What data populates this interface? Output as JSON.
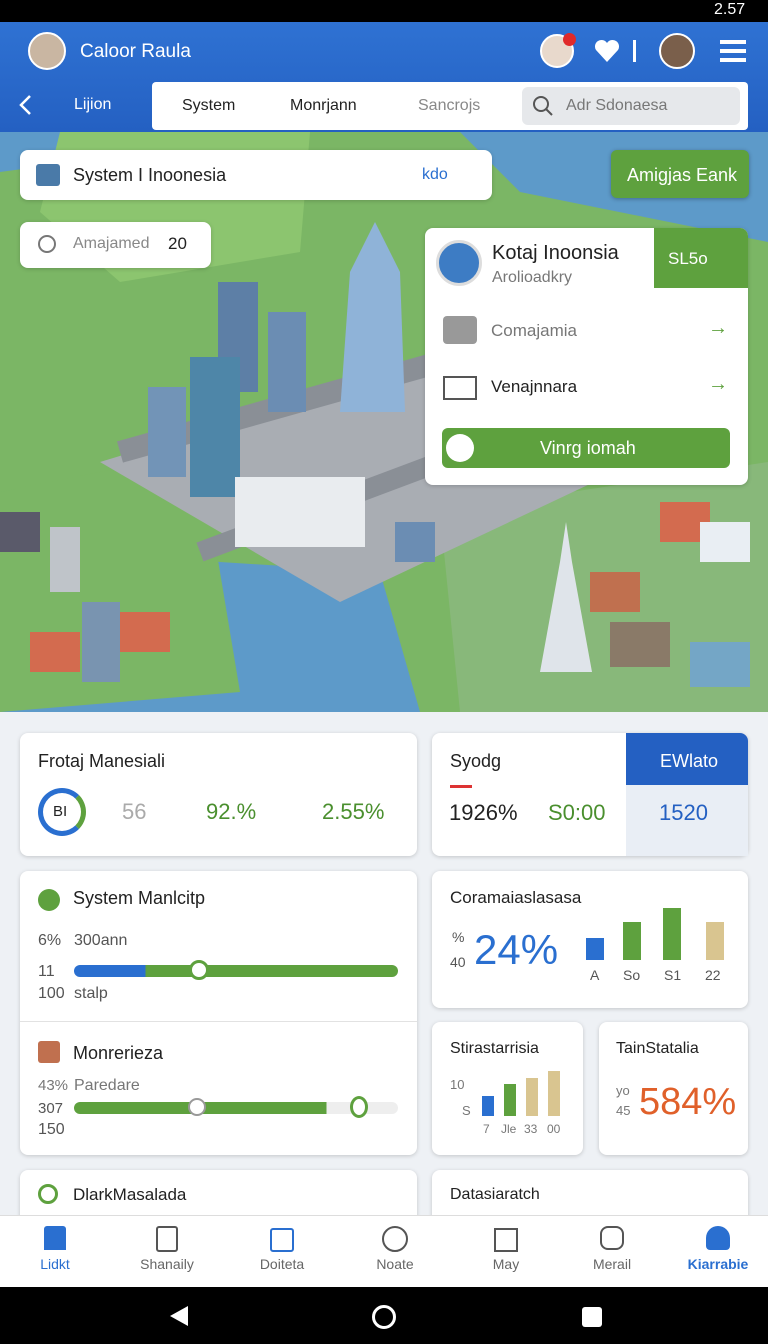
{
  "status_bar": {
    "time": "2.57"
  },
  "header": {
    "user_name": "Caloor Raula"
  },
  "nav": {
    "back_label": "Lijion",
    "tabs": [
      "System",
      "Monrjann",
      "Sancrojs"
    ],
    "search_placeholder": "Adr Sdonaesa"
  },
  "map": {
    "search_card": {
      "title": "System I Inoonesia",
      "action": "kdo"
    },
    "counter": {
      "label": "Amajamed",
      "value": "20"
    },
    "top_button": "Amigjas Eank",
    "info_card": {
      "title": "Kotaj Inoonsia",
      "subtitle": "Arolioadkry",
      "button": "SL5o",
      "items": [
        "Comajamia",
        "Venajnnara"
      ],
      "action": "Vinrg iomah"
    }
  },
  "cards": {
    "overview": {
      "title": "Frotaj Manesiali",
      "badge": "BI",
      "values": [
        "56",
        "92.%",
        "2.55%"
      ]
    },
    "summary": {
      "title": "Syodg",
      "values": [
        "1926%",
        "S0:00"
      ],
      "tab": "EWlato",
      "tab_value": "1520"
    },
    "system": {
      "title": "System Manlcitp",
      "labels": [
        "6%",
        "300ann",
        "11",
        "100",
        "stalp"
      ]
    },
    "coverage": {
      "title": "Coramaiaslasasa",
      "labels": [
        "%",
        "40"
      ],
      "value": "24%",
      "bar_labels": [
        "A",
        "So",
        "S1",
        "22"
      ]
    },
    "monitor": {
      "title": "Monrerieza",
      "labels": [
        "43%",
        "Paredare",
        "307",
        "150"
      ]
    },
    "stats": {
      "title": "Stirastarrisia",
      "labels": [
        "10",
        "S"
      ],
      "bar_labels": [
        "7",
        "Jle",
        "33",
        "00"
      ]
    },
    "total": {
      "title": "TainStatalia",
      "labels": [
        "yo",
        "45"
      ],
      "value": "584%"
    },
    "dark": {
      "title": "DlarkMasalada"
    },
    "data": {
      "title": "Datasiaratch"
    }
  },
  "bottom_nav": [
    "Lidkt",
    "Shanaily",
    "Doiteta",
    "Noate",
    "May",
    "Merail",
    "Kiarrabie"
  ]
}
